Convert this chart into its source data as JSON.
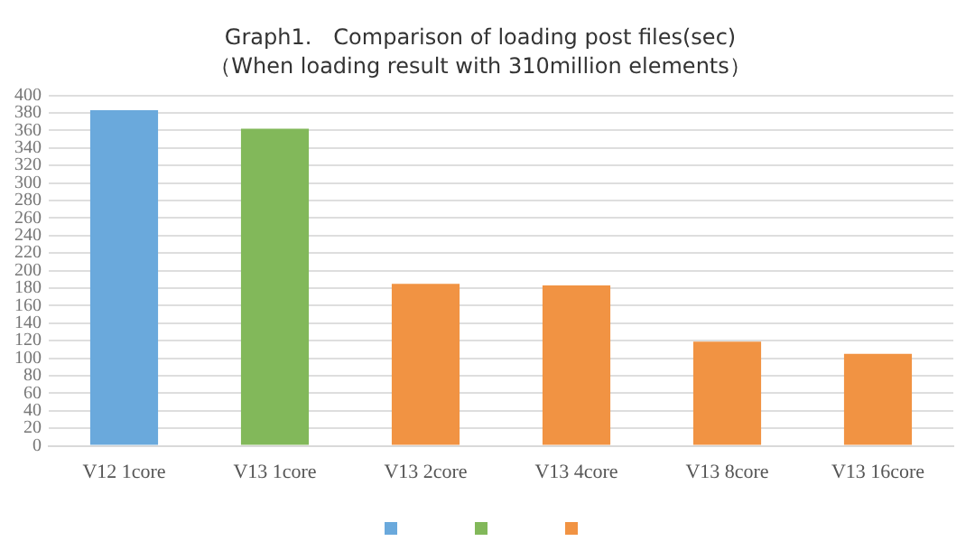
{
  "chart_data": {
    "type": "bar",
    "title": "Graph1.　Comparison of loading post files(sec)",
    "subtitle": "（When loading result with 310million elements）",
    "categories": [
      "V12 1core",
      "V13 1core",
      "V13 2core",
      "V13 4core",
      "V13 8core",
      "V13 16core"
    ],
    "series": [
      {
        "color": "#6aa9dc",
        "values": [
          383,
          null,
          null,
          null,
          null,
          null
        ]
      },
      {
        "color": "#82b85a",
        "values": [
          null,
          362,
          null,
          null,
          null,
          null
        ]
      },
      {
        "color": "#f19343",
        "values": [
          null,
          null,
          185,
          183,
          119,
          105
        ]
      }
    ],
    "ylim": [
      0,
      400
    ],
    "yticks": [
      0,
      20,
      40,
      60,
      80,
      100,
      120,
      140,
      160,
      180,
      200,
      220,
      240,
      260,
      280,
      300,
      320,
      340,
      360,
      380,
      400
    ],
    "grid": "y"
  }
}
